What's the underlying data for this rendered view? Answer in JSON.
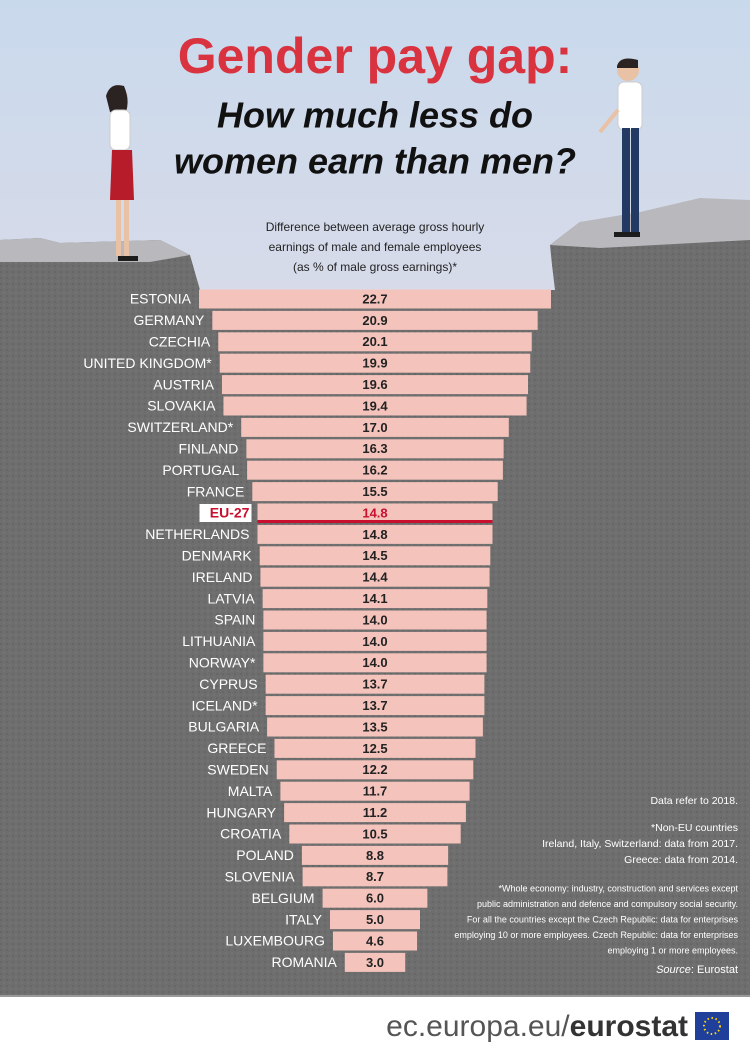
{
  "chart_data": {
    "type": "bar",
    "title": "Gender pay gap:",
    "subtitle_lines": [
      "How much less do",
      "women earn than men?"
    ],
    "description_lines": [
      "Difference between average gross hourly",
      "earnings of male and female employees",
      "(as % of male gross earnings)*"
    ],
    "categories": [
      "ESTONIA",
      "GERMANY",
      "CZECHIA",
      "UNITED KINGDOM*",
      "AUSTRIA",
      "SLOVAKIA",
      "SWITZERLAND*",
      "FINLAND",
      "PORTUGAL",
      "FRANCE",
      "EU-27",
      "NETHERLANDS",
      "DENMARK",
      "IRELAND",
      "LATVIA",
      "SPAIN",
      "LITHUANIA",
      "NORWAY*",
      "CYPRUS",
      "ICELAND*",
      "BULGARIA",
      "GREECE",
      "SWEDEN",
      "MALTA",
      "HUNGARY",
      "CROATIA",
      "POLAND",
      "SLOVENIA",
      "BELGIUM",
      "ITALY",
      "LUXEMBOURG",
      "ROMANIA"
    ],
    "values": [
      22.7,
      20.9,
      20.1,
      19.9,
      19.6,
      19.4,
      17.0,
      16.3,
      16.2,
      15.5,
      14.8,
      14.8,
      14.5,
      14.4,
      14.1,
      14.0,
      14.0,
      14.0,
      13.7,
      13.7,
      13.5,
      12.5,
      12.2,
      11.7,
      11.2,
      10.5,
      8.8,
      8.7,
      6.0,
      5.0,
      4.6,
      3.0
    ],
    "value_labels": [
      "22.7",
      "20.9",
      "20.1",
      "19.9",
      "19.6",
      "19.4",
      "17.0",
      "16.3",
      "16.2",
      "15.5",
      "14.8",
      "14.8",
      "14.5",
      "14.4",
      "14.1",
      "14.0",
      "14.0",
      "14.0",
      "13.7",
      "13.7",
      "13.5",
      "12.5",
      "12.2",
      "11.7",
      "11.2",
      "10.5",
      "8.8",
      "8.7",
      "6.0",
      "5.0",
      "4.6",
      "3.0"
    ],
    "color": "#f4c4bc",
    "highlight": "EU-27",
    "highlight_color": "#c8102e",
    "notes": [
      [
        "Data refer to 2018."
      ],
      [
        "*Non-EU countries",
        "Ireland, Italy, Switzerland: data from 2017.",
        "Greece: data from 2014."
      ],
      [
        "*Whole economy: industry, construction and services except",
        "public administration and defence and compulsory social security.",
        "For all the countries except the Czech Republic: data for enterprises",
        "employing 10 or more employees. Czech Republic: data for enterprises",
        "employing 1 or more employees."
      ]
    ],
    "source_label": "Source",
    "source_text": ": Eurostat",
    "footer_url": "ec.europa.eu/",
    "footer_brand": "eurostat"
  }
}
